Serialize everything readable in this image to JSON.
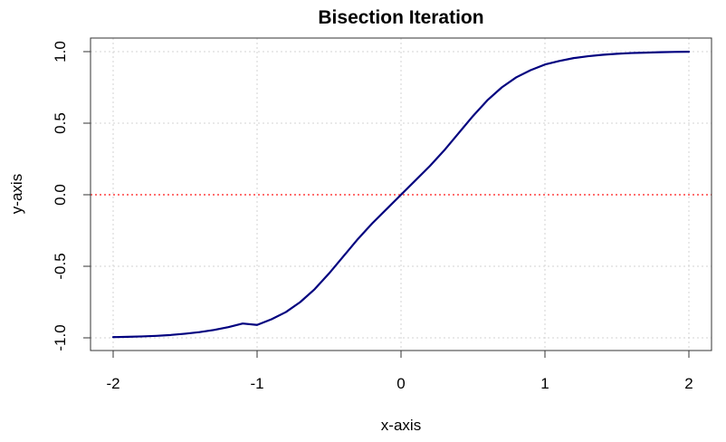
{
  "chart_data": {
    "type": "line",
    "title": "Bisection Iteration",
    "xlabel": "x-axis",
    "ylabel": "y-axis",
    "xlim": [
      -2,
      2
    ],
    "ylim": [
      -1,
      1
    ],
    "x_ticks": [
      -2,
      -1,
      0,
      1,
      2
    ],
    "y_ticks": [
      -1,
      -0.5,
      0,
      0.5,
      1
    ],
    "x_tick_labels": [
      "-2",
      "-1",
      "0",
      "1",
      "2"
    ],
    "y_tick_labels": [
      "-1.0",
      "-0.5",
      "0.0",
      "0.5",
      "1.0"
    ],
    "grid": true,
    "series": [
      {
        "x": [
          -2.0,
          -1.9,
          -1.8,
          -1.7,
          -1.6,
          -1.5,
          -1.4,
          -1.3,
          -1.2,
          -1.1,
          -1.0,
          -0.9,
          -0.8,
          -0.7,
          -0.6,
          -0.5,
          -0.4,
          -0.3,
          -0.2,
          -0.1,
          0.0,
          0.1,
          0.2,
          0.3,
          0.4,
          0.5,
          0.6,
          0.7,
          0.8,
          0.9,
          1.0,
          1.1,
          1.2,
          1.3,
          1.4,
          1.5,
          1.6,
          1.7,
          1.8,
          1.9,
          2.0
        ],
        "y": [
          -0.995,
          -0.993,
          -0.99,
          -0.986,
          -0.98,
          -0.971,
          -0.96,
          -0.945,
          -0.925,
          -0.9,
          -0.91,
          -0.87,
          -0.82,
          -0.75,
          -0.66,
          -0.55,
          -0.43,
          -0.31,
          -0.2,
          -0.1,
          0.0,
          0.1,
          0.2,
          0.31,
          0.43,
          0.55,
          0.66,
          0.75,
          0.82,
          0.87,
          0.91,
          0.935,
          0.955,
          0.968,
          0.978,
          0.985,
          0.99,
          0.993,
          0.996,
          0.998,
          0.999
        ],
        "color": "#00007f"
      }
    ],
    "reference_lines": [
      {
        "axis": "y",
        "value": 0,
        "color": "#ff4040",
        "style": "dotted"
      }
    ]
  }
}
